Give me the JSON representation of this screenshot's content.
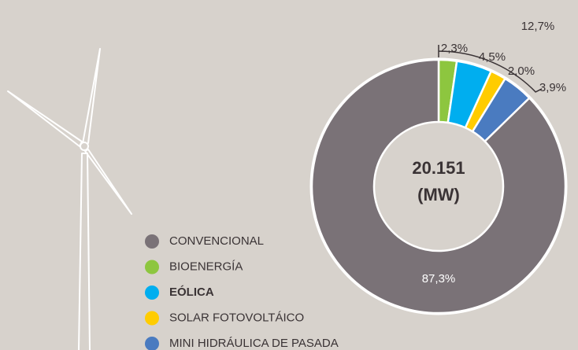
{
  "chart_data": {
    "type": "donut",
    "categories": [
      "CONVENCIONAL",
      "BIOENERGÍA",
      "EÓLICA",
      "SOLAR FOTOVOLTÁICO",
      "MINI HIDRÁULICA DE PASADA"
    ],
    "values": [
      87.3,
      2.3,
      4.5,
      2.0,
      3.9
    ],
    "value_labels": [
      "87,3%",
      "2,3%",
      "4,5%",
      "2,0%",
      "3,9%"
    ],
    "colors": [
      "#7a7277",
      "#8dc63f",
      "#00aeef",
      "#ffcc00",
      "#4a7bc0"
    ],
    "highlight": 2,
    "center_text": [
      "20.151",
      "(MW)"
    ],
    "bracket": {
      "value": 12.7,
      "label": "12,7%"
    }
  }
}
